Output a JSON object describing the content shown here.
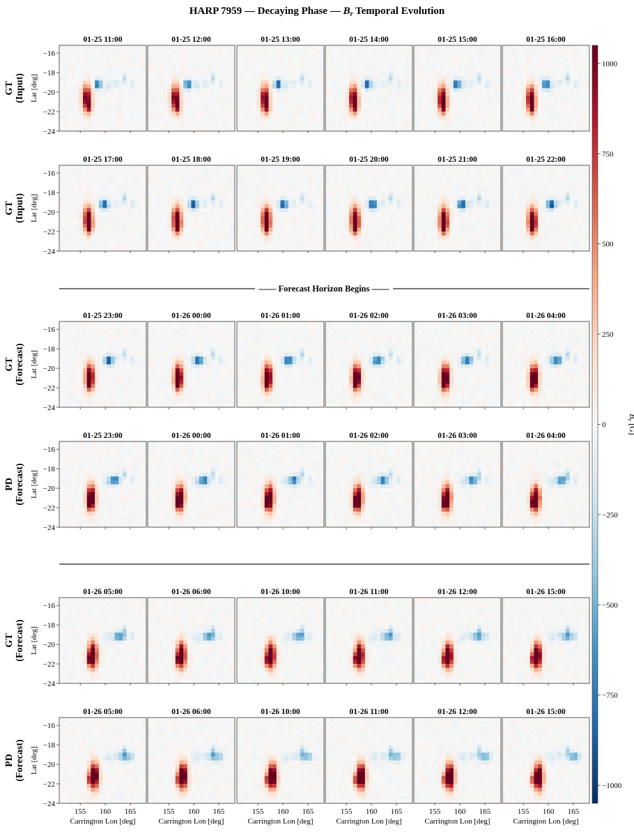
{
  "chart_data": {
    "type": "heatmap",
    "title": "HARP 7959 — Decaying Phase — ",
    "title_var": "B",
    "title_sub": "r",
    "title_tail": " Temporal Evolution",
    "xlabel": "Carrington Lon [deg]",
    "ylabel": "Lat [deg]",
    "xticks": [
      155,
      160,
      165
    ],
    "xlim": [
      150.8,
      168.2
    ],
    "yticks": [
      -16,
      -18,
      -20,
      -22,
      -24
    ],
    "ylim": [
      -24,
      -15.2
    ],
    "colorbar": {
      "label_var": "B",
      "label_sub": "r",
      "label_tail": " [G]",
      "range": [
        -1050,
        1050
      ],
      "ticks": [
        1000,
        750,
        500,
        250,
        0,
        -250,
        -500,
        -750,
        -1000
      ],
      "colormap": "RdBu_r",
      "colors": [
        "#053061",
        "#2166ac",
        "#4393c3",
        "#92c5de",
        "#d1e5f0",
        "#f7f7f7",
        "#fddbc7",
        "#f4a582",
        "#d6604d",
        "#b2182b",
        "#67001f"
      ]
    },
    "separator_label": "Forecast Horizon Begins",
    "rows": [
      {
        "label_line1": "GT",
        "label_line2": "(Input)",
        "times": [
          "01-25 11:00",
          "01-25 12:00",
          "01-25 13:00",
          "01-25 14:00",
          "01-25 15:00",
          "01-25 16:00"
        ]
      },
      {
        "label_line1": "GT",
        "label_line2": "(Input)",
        "times": [
          "01-25 17:00",
          "01-25 18:00",
          "01-25 19:00",
          "01-25 20:00",
          "01-25 21:00",
          "01-25 22:00"
        ]
      },
      {
        "label_line1": "GT",
        "label_line2": "(Forecast)",
        "times": [
          "01-25 23:00",
          "01-26 00:00",
          "01-26 01:00",
          "01-26 02:00",
          "01-26 03:00",
          "01-26 04:00"
        ]
      },
      {
        "label_line1": "PD",
        "label_line2": "(Forecast)",
        "times": [
          "01-25 23:00",
          "01-26 00:00",
          "01-26 01:00",
          "01-26 02:00",
          "01-26 03:00",
          "01-26 04:00"
        ]
      },
      {
        "label_line1": "GT",
        "label_line2": "(Forecast)",
        "times": [
          "01-26 05:00",
          "01-26 06:00",
          "01-26 10:00",
          "01-26 11:00",
          "01-26 12:00",
          "01-26 15:00"
        ]
      },
      {
        "label_line1": "PD",
        "label_line2": "(Forecast)",
        "times": [
          "01-26 05:00",
          "01-26 06:00",
          "01-26 10:00",
          "01-26 11:00",
          "01-26 12:00",
          "01-26 15:00"
        ]
      }
    ]
  }
}
